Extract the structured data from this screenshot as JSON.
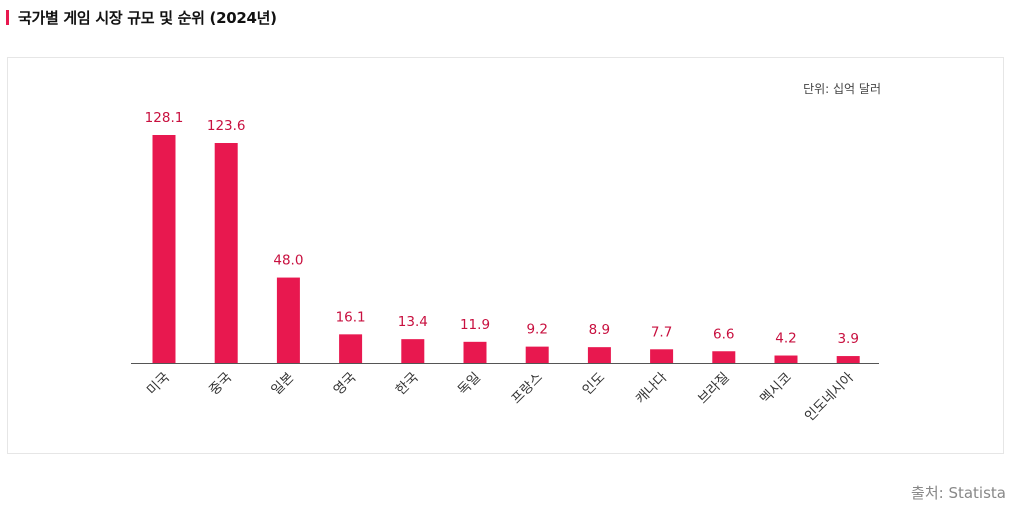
{
  "header": {
    "title": "국가별 게임 시장 규모 및 순위 (2024년)"
  },
  "footer": {
    "source": "출처: Statista"
  },
  "colors": {
    "bar": "#e8184f",
    "label": "#c8103f",
    "axis": "#555555",
    "accent": "#e8184f"
  },
  "chart_data": {
    "type": "bar",
    "unit_label": "단위: 십억 달러",
    "categories": [
      "미국",
      "중국",
      "일본",
      "영국",
      "한국",
      "독일",
      "프랑스",
      "인도",
      "캐나다",
      "브라질",
      "멕시코",
      "인도네시아"
    ],
    "values": [
      128.1,
      123.6,
      48.0,
      16.1,
      13.4,
      11.9,
      9.2,
      8.9,
      7.7,
      6.6,
      4.2,
      3.9
    ],
    "value_labels": [
      "128.1",
      "123.6",
      "48.0",
      "16.1",
      "13.4",
      "11.9",
      "9.2",
      "8.9",
      "7.7",
      "6.6",
      "4.2",
      "3.9"
    ],
    "grid": false,
    "legend": "none"
  }
}
